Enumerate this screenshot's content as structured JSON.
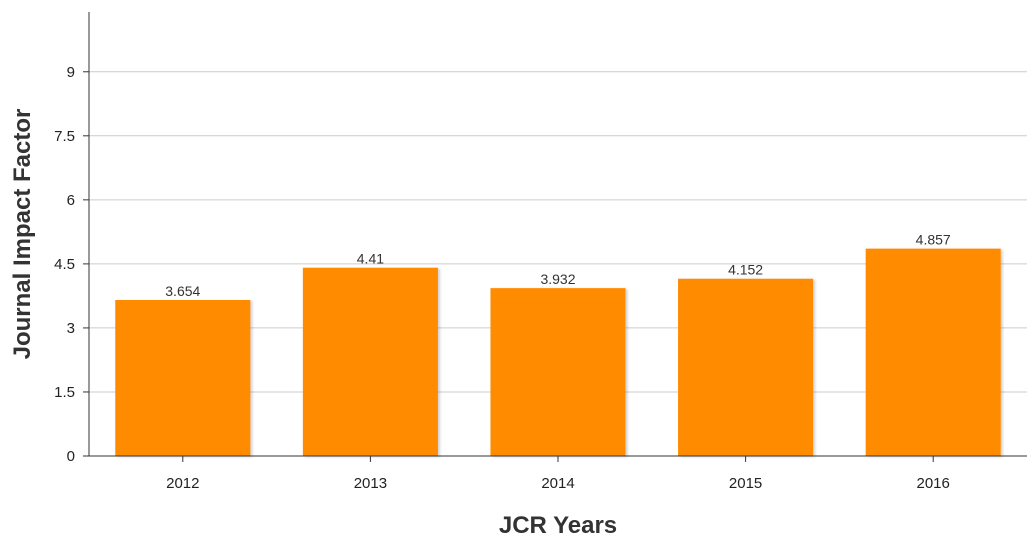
{
  "chart_data": {
    "type": "bar",
    "title": "",
    "xlabel": "JCR Years",
    "ylabel": "Journal Impact Factor",
    "categories": [
      "2012",
      "2013",
      "2014",
      "2015",
      "2016"
    ],
    "values": [
      3.654,
      4.41,
      3.932,
      4.152,
      4.857
    ],
    "data_labels": [
      "3.654",
      "4.41",
      "3.932",
      "4.152",
      "4.857"
    ],
    "yticks": [
      0,
      1.5,
      3,
      4.5,
      6,
      7.5,
      9
    ],
    "ytick_labels": [
      "0",
      "1.5",
      "3",
      "4.5",
      "6",
      "7.5",
      "9"
    ],
    "ylim": [
      0,
      10.4
    ],
    "grid": true,
    "legend": "none",
    "bar_color": "#ff8c00"
  }
}
